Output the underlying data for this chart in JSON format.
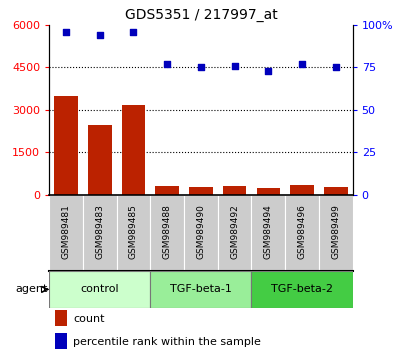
{
  "title": "GDS5351 / 217997_at",
  "samples": [
    "GSM989481",
    "GSM989483",
    "GSM989485",
    "GSM989488",
    "GSM989490",
    "GSM989492",
    "GSM989494",
    "GSM989496",
    "GSM989499"
  ],
  "counts": [
    3500,
    2450,
    3150,
    310,
    265,
    315,
    240,
    355,
    255
  ],
  "percentiles": [
    96,
    94,
    96,
    77,
    75,
    76,
    73,
    77,
    75
  ],
  "groups": [
    {
      "label": "control",
      "indices": [
        0,
        1,
        2
      ],
      "color": "#ccffcc"
    },
    {
      "label": "TGF-beta-1",
      "indices": [
        3,
        4,
        5
      ],
      "color": "#99ee99"
    },
    {
      "label": "TGF-beta-2",
      "indices": [
        6,
        7,
        8
      ],
      "color": "#44cc44"
    }
  ],
  "bar_color": "#bb2200",
  "dot_color": "#0000bb",
  "left_ylim": [
    0,
    6000
  ],
  "right_ylim": [
    0,
    100
  ],
  "left_yticks": [
    0,
    1500,
    3000,
    4500,
    6000
  ],
  "right_yticks": [
    0,
    25,
    50,
    75,
    100
  ],
  "right_yticklabels": [
    "0",
    "25",
    "50",
    "75",
    "100%"
  ],
  "grid_values": [
    1500,
    3000,
    4500
  ],
  "background_color": "#ffffff",
  "sample_box_color": "#cccccc",
  "agent_label": "agent"
}
